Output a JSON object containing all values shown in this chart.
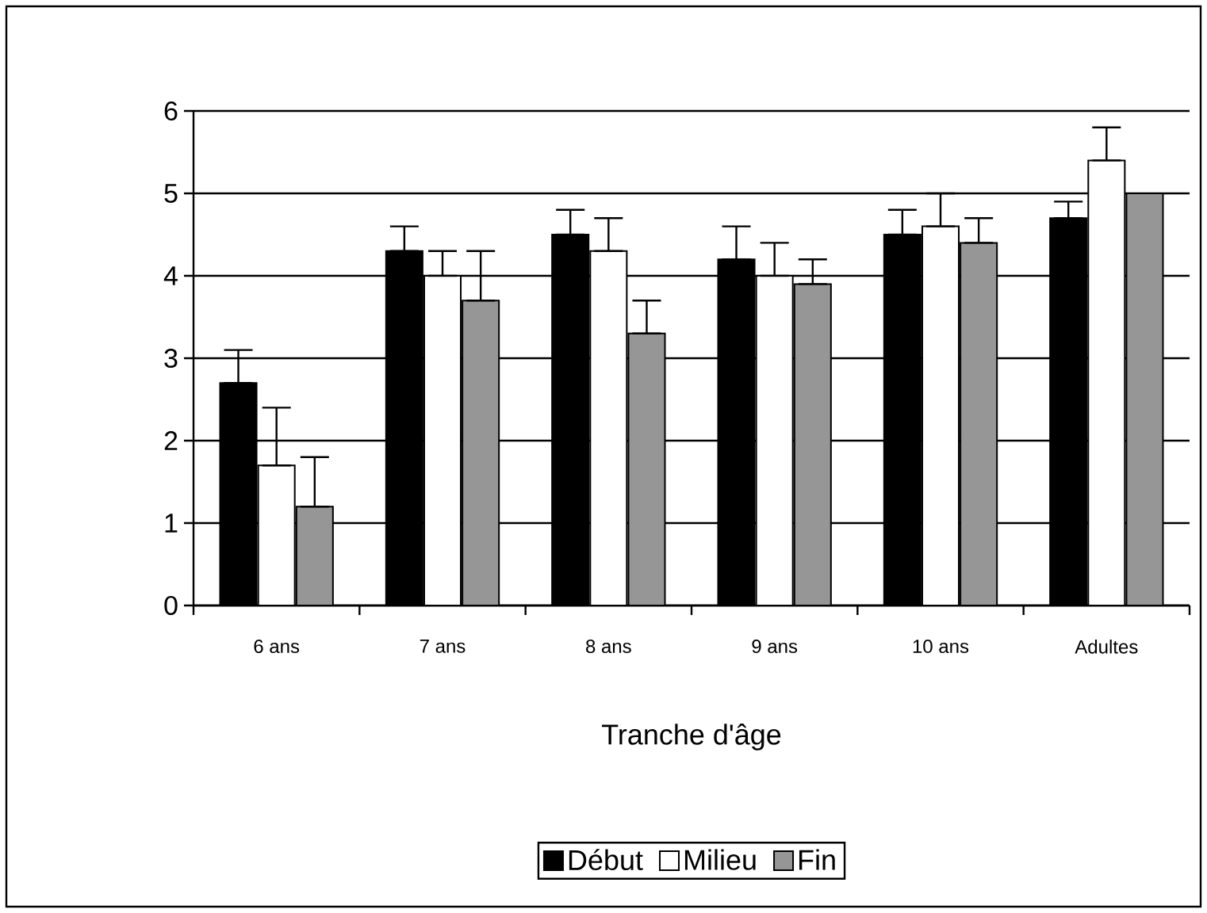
{
  "chart_data": {
    "type": "bar",
    "xlabel": "Tranche d'âge",
    "categories": [
      "6 ans",
      "7 ans",
      "8 ans",
      "9 ans",
      "10 ans",
      "Adultes"
    ],
    "series": [
      {
        "name": "Début",
        "color": "#000000",
        "values": [
          2.7,
          4.3,
          4.5,
          4.2,
          4.5,
          4.7
        ],
        "errors": [
          [
            2.7,
            3.1
          ],
          [
            4.3,
            4.6
          ],
          [
            4.5,
            4.8
          ],
          [
            4.2,
            4.6
          ],
          [
            4.5,
            4.8
          ],
          [
            4.7,
            4.9
          ]
        ]
      },
      {
        "name": "Milieu",
        "color": "#ffffff",
        "values": [
          1.7,
          4.0,
          4.3,
          4.0,
          4.6,
          5.4
        ],
        "errors": [
          [
            1.7,
            2.4
          ],
          [
            4.0,
            4.3
          ],
          [
            4.3,
            4.7
          ],
          [
            4.0,
            4.4
          ],
          [
            4.6,
            5.0
          ],
          [
            5.4,
            5.8
          ]
        ]
      },
      {
        "name": "Fin",
        "color": "#969696",
        "values": [
          1.2,
          3.7,
          3.3,
          3.9,
          4.4,
          5.0
        ],
        "errors": [
          [
            1.2,
            1.8
          ],
          [
            3.7,
            4.3
          ],
          [
            3.3,
            3.7
          ],
          [
            3.9,
            4.2
          ],
          [
            4.4,
            4.7
          ],
          null
        ]
      }
    ],
    "ylim": [
      0,
      6
    ],
    "yticks": [
      0,
      1,
      2,
      3,
      4,
      5,
      6
    ],
    "grid": "y",
    "legend": "bottom"
  }
}
